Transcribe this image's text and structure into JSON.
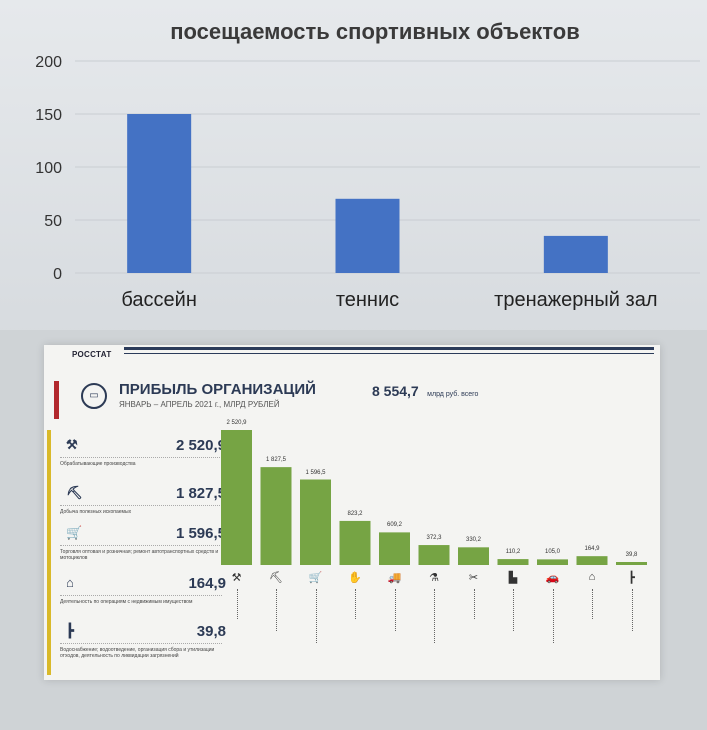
{
  "chart_data": [
    {
      "type": "bar",
      "title": "посещаемость  спортивных  объектов",
      "categories": [
        "бассейн",
        "теннис",
        "тренажерный зал"
      ],
      "values": [
        150,
        70,
        35
      ],
      "ylim": [
        0,
        200
      ],
      "yticks": [
        "0",
        "50",
        "100",
        "150",
        "200"
      ],
      "grid": true,
      "color": "#4472c4"
    },
    {
      "type": "bar",
      "title": "ПРИБЫЛЬ ОРГАНИЗАЦИЙ",
      "subtitle": "ЯНВАРЬ – АПРЕЛЬ 2021 г., МЛРД РУБЛЕЙ",
      "total": "8 554,7",
      "total_unit": "млрд руб. всего",
      "values": [
        2520.9,
        1827.5,
        1596.5,
        823.2,
        609.2,
        372.3,
        330.2,
        110.2,
        105.0,
        164.9,
        39.8
      ],
      "value_labels": [
        "2 520,9",
        "1 827,5",
        "1 596,5",
        "823,2",
        "609,2",
        "372,3",
        "330,2",
        "110,2",
        "105,0",
        "164,9",
        "39,8"
      ],
      "icons": [
        "tools-icon",
        "excavator-icon",
        "cart-icon",
        "hand-coin-icon",
        "truck-icon",
        "lab-icon",
        "scissors-icon",
        "building-icon",
        "car-icon",
        "house-icon",
        "pipe-icon"
      ],
      "color": "#76a444"
    }
  ],
  "infographic": {
    "brand": "РОССТАТ",
    "stats": [
      {
        "value": "2 520,9",
        "icon": "tools-icon",
        "label": "Обрабатывающие производства"
      },
      {
        "value": "1 827,5",
        "icon": "excavator-icon",
        "label": "Добыча полезных ископаемых"
      },
      {
        "value": "1 596,5",
        "icon": "cart-icon",
        "label": "Торговля оптовая и розничная; ремонт автотранспортных средств и мотоциклов"
      },
      {
        "value": "164,9",
        "icon": "house-icon",
        "label": "Деятельность по операциям с недвижимым имуществом"
      },
      {
        "value": "39,8",
        "icon": "pipe-icon",
        "label": "Водоснабжение; водоотведение, организация сбора и утилизации отходов, деятельность по ликвидации загрязнений"
      }
    ]
  }
}
